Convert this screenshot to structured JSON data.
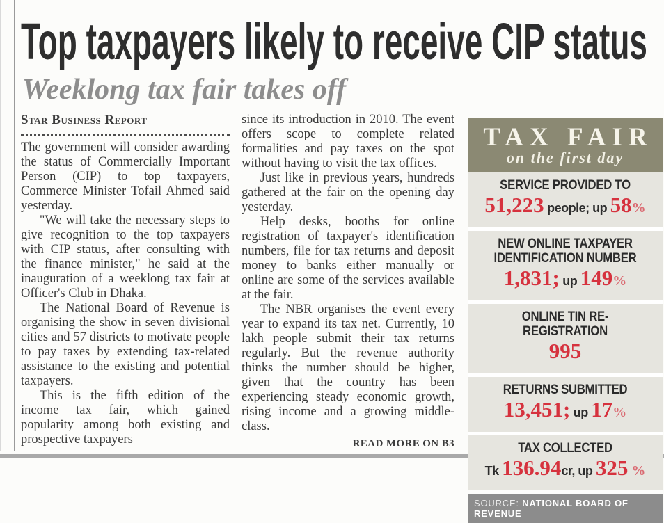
{
  "masthead": {
    "headline": "Top taxpayers likely to receive CIP status",
    "subhead": "Weeklong tax fair takes off"
  },
  "article": {
    "byline": "Star Business Report",
    "read_more": "READ MORE ON B3",
    "col1": [
      "The government will consider awarding the status of Commercially Important Person (CIP) to top taxpayers, Commerce Minister Tofail Ahmed said yesterday.",
      "\"We will take the necessary steps to give recognition to the top taxpayers with CIP status, after consulting with the finance minister,\" he said at the inauguration of a weeklong tax fair at Officer's Club in Dhaka.",
      "The National Board of Revenue is organising the show in seven divisional cities and 57 districts to motivate people to pay taxes by extending tax-related assistance to the existing and potential taxpayers.",
      "This is the fifth edition of the income tax fair, which gained popularity among both existing and prospective taxpayers"
    ],
    "col2": [
      "since its introduction in 2010. The event offers scope to complete related formalities and pay taxes on the spot without having to visit the tax offices.",
      "Just like in previous years, hundreds gathered at the fair on the opening day yesterday.",
      "Help desks, booths for online registration of taxpayer's identification numbers, file for tax returns and deposit money to banks either manually or online are some of the services available at the fair.",
      "The NBR organises the event every year to expand its tax net. Currently, 10 lakh people submit their tax returns regularly. But the revenue authority thinks the number should be higher, given that the country has been experiencing steady economic growth, rising income and a growing middle-class."
    ]
  },
  "infographic": {
    "title": "TAX FAIR",
    "subtitle": "on the first day",
    "source_label": "SOURCE:",
    "source_value": "NATIONAL BOARD OF REVENUE",
    "stats": [
      {
        "id": "service-provided",
        "label": "SERVICE PROVIDED TO",
        "value": [
          {
            "t": "51,223",
            "k": "num"
          },
          {
            "t": " people; up ",
            "k": "txt"
          },
          {
            "t": "58",
            "k": "num"
          },
          {
            "t": "%",
            "k": "pct"
          }
        ]
      },
      {
        "id": "new-online-tin",
        "label": "NEW ONLINE TAXPAYER IDENTIFICATION NUMBER",
        "value": [
          {
            "t": "1,831;",
            "k": "num"
          },
          {
            "t": " up ",
            "k": "txt"
          },
          {
            "t": "149",
            "k": "num"
          },
          {
            "t": "%",
            "k": "pct"
          }
        ]
      },
      {
        "id": "online-tin-re-registration",
        "label": "ONLINE TIN RE-REGISTRATION",
        "value": [
          {
            "t": "995",
            "k": "num"
          }
        ]
      },
      {
        "id": "returns-submitted",
        "label": "RETURNS SUBMITTED",
        "value": [
          {
            "t": "13,451;",
            "k": "num"
          },
          {
            "t": " up ",
            "k": "txt"
          },
          {
            "t": "17",
            "k": "num"
          },
          {
            "t": "%",
            "k": "pct"
          }
        ]
      },
      {
        "id": "tax-collected",
        "label": "TAX COLLECTED",
        "value": [
          {
            "t": "Tk ",
            "k": "txt"
          },
          {
            "t": "136.94",
            "k": "num"
          },
          {
            "t": "cr, up ",
            "k": "txt"
          },
          {
            "t": "325",
            "k": "num"
          },
          {
            "t": " %",
            "k": "pct"
          }
        ]
      }
    ]
  },
  "colors": {
    "headline_text": "#2e2e2e",
    "subhead_text": "#8d8d8d",
    "body_text": "#3a3a3a",
    "infographic_header_bg": "#8b8973",
    "infographic_body_bg": "#e6e5df",
    "stat_number_red": "#d6323e",
    "percent_red": "#da6a72",
    "source_bar_bg": "#8c8c8c",
    "rule_gray": "#9a9a9a"
  }
}
